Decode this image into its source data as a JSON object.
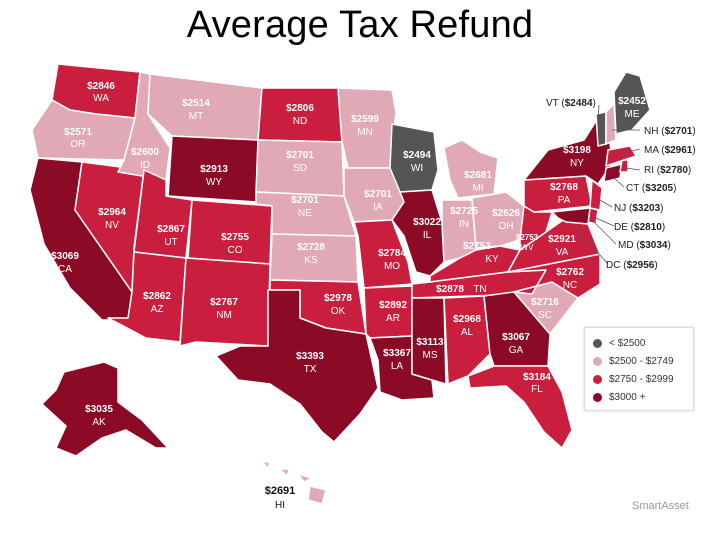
{
  "title": "Average Tax Refund",
  "brand": "SmartAsset",
  "colors": {
    "lt2500": "#555555",
    "r2500_2749": "#e1a9b5",
    "r2750_2999": "#c91e3e",
    "r3000plus": "#8b0a26",
    "border": "#ffffff"
  },
  "legend": [
    {
      "label": "< $2500",
      "color": "#555555"
    },
    {
      "label": "$2500 - $2749",
      "color": "#e1a9b5"
    },
    {
      "label": "$2750 - $2999",
      "color": "#c91e3e"
    },
    {
      "label": "$3000 +",
      "color": "#8b0a26"
    }
  ],
  "states": {
    "WA": {
      "value": "$2846",
      "abbr": "WA"
    },
    "OR": {
      "value": "$2571",
      "abbr": "OR"
    },
    "CA": {
      "value": "$3069",
      "abbr": "CA"
    },
    "NV": {
      "value": "$2964",
      "abbr": "NV"
    },
    "ID": {
      "value": "$2600",
      "abbr": "ID"
    },
    "MT": {
      "value": "$2514",
      "abbr": "MT"
    },
    "WY": {
      "value": "$2913",
      "abbr": "WY"
    },
    "UT": {
      "value": "$2867",
      "abbr": "UT"
    },
    "AZ": {
      "value": "$2862",
      "abbr": "AZ"
    },
    "CO": {
      "value": "$2755",
      "abbr": "CO"
    },
    "NM": {
      "value": "$2767",
      "abbr": "NM"
    },
    "ND": {
      "value": "$2806",
      "abbr": "ND"
    },
    "SD": {
      "value": "$2701",
      "abbr": "SD"
    },
    "NE": {
      "value": "$2701",
      "abbr": "NE"
    },
    "KS": {
      "value": "$2728",
      "abbr": "KS"
    },
    "OK": {
      "value": "$2978",
      "abbr": "OK"
    },
    "TX": {
      "value": "$3393",
      "abbr": "TX"
    },
    "MN": {
      "value": "$2599",
      "abbr": "MN"
    },
    "IA": {
      "value": "$2701",
      "abbr": "IA"
    },
    "MO": {
      "value": "$2784",
      "abbr": "MO"
    },
    "AR": {
      "value": "$2892",
      "abbr": "AR"
    },
    "LA": {
      "value": "$3367",
      "abbr": "LA"
    },
    "WI": {
      "value": "$2494",
      "abbr": "WI"
    },
    "IL": {
      "value": "$3022",
      "abbr": "IL"
    },
    "MI": {
      "value": "$2681",
      "abbr": "MI"
    },
    "IN": {
      "value": "$2725",
      "abbr": "IN"
    },
    "OH": {
      "value": "$2626",
      "abbr": "OH"
    },
    "KY": {
      "value": "$2753",
      "abbr": "KY"
    },
    "TN": {
      "value": "$2878",
      "abbr": "TN"
    },
    "MS": {
      "value": "$3113",
      "abbr": "MS"
    },
    "AL": {
      "value": "$2968",
      "abbr": "AL"
    },
    "GA": {
      "value": "$3067",
      "abbr": "GA"
    },
    "FL": {
      "value": "$3184",
      "abbr": "FL"
    },
    "SC": {
      "value": "$2716",
      "abbr": "SC"
    },
    "NC": {
      "value": "$2762",
      "abbr": "NC"
    },
    "VA": {
      "value": "$2921",
      "abbr": "VA"
    },
    "WV": {
      "value": "$2753",
      "abbr": "WV"
    },
    "PA": {
      "value": "$2768",
      "abbr": "PA"
    },
    "NY": {
      "value": "$3198",
      "abbr": "NY"
    },
    "ME": {
      "value": "$2452",
      "abbr": "ME"
    },
    "AK": {
      "value": "$3035",
      "abbr": "AK"
    },
    "HI": {
      "value": "$2691",
      "abbr": "HI"
    }
  },
  "callouts": {
    "VT": {
      "code": "VT",
      "value": "$2484"
    },
    "NH": {
      "code": "NH",
      "value": "$2701"
    },
    "MA": {
      "code": "MA",
      "value": "$2961"
    },
    "RI": {
      "code": "RI",
      "value": "$2780"
    },
    "CT": {
      "code": "CT",
      "value": "$3205"
    },
    "NJ": {
      "code": "NJ",
      "value": "$3203"
    },
    "DE": {
      "code": "DE",
      "value": "$2810"
    },
    "MD": {
      "code": "MD",
      "value": "$3034"
    },
    "DC": {
      "code": "DC",
      "value": "$2956"
    }
  }
}
